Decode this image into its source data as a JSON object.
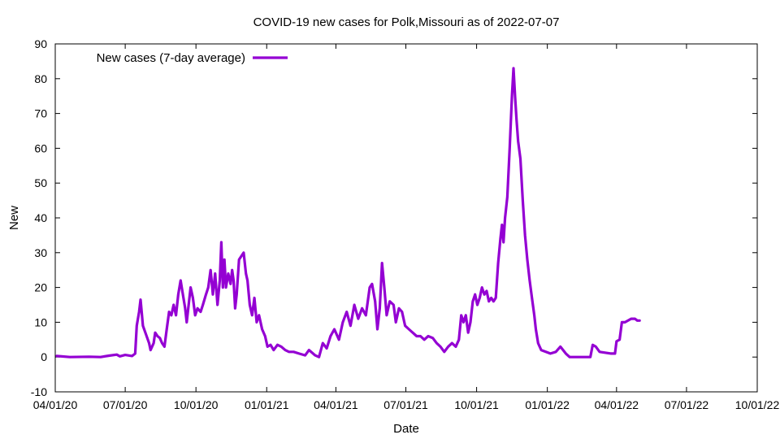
{
  "chart_data": {
    "type": "line",
    "title": "COVID-19 new cases for Polk,Missouri as of 2022-07-07",
    "xlabel": "Date",
    "ylabel": "New",
    "xlim": [
      "2020-04-01",
      "2022-10-01"
    ],
    "ylim": [
      -10,
      90
    ],
    "x_ticks": [
      "04/01/20",
      "07/01/20",
      "10/01/20",
      "01/01/21",
      "04/01/21",
      "07/01/21",
      "10/01/21",
      "01/01/22",
      "04/01/22",
      "07/01/22",
      "10/01/22"
    ],
    "x_tick_dates": [
      "2020-04-01",
      "2020-07-01",
      "2020-10-01",
      "2021-01-01",
      "2021-04-01",
      "2021-07-01",
      "2021-10-01",
      "2022-01-01",
      "2022-04-01",
      "2022-07-01",
      "2022-10-01"
    ],
    "y_ticks": [
      -10,
      0,
      10,
      20,
      30,
      40,
      50,
      60,
      70,
      80,
      90
    ],
    "grid": false,
    "legend_position": "top-left",
    "series": [
      {
        "name": "New cases (7-day average)",
        "color": "#9400d3",
        "points": [
          [
            "2020-04-03",
            0.3
          ],
          [
            "2020-04-20",
            0
          ],
          [
            "2020-05-15",
            0.1
          ],
          [
            "2020-05-30",
            0
          ],
          [
            "2020-06-10",
            0.4
          ],
          [
            "2020-06-20",
            0.7
          ],
          [
            "2020-06-24",
            0.2
          ],
          [
            "2020-07-01",
            0.6
          ],
          [
            "2020-07-10",
            0.3
          ],
          [
            "2020-07-14",
            1.0
          ],
          [
            "2020-07-16",
            9
          ],
          [
            "2020-07-19",
            13
          ],
          [
            "2020-07-21",
            16.5
          ],
          [
            "2020-07-24",
            9
          ],
          [
            "2020-07-28",
            6.5
          ],
          [
            "2020-08-01",
            4
          ],
          [
            "2020-08-03",
            2
          ],
          [
            "2020-08-07",
            4
          ],
          [
            "2020-08-09",
            7
          ],
          [
            "2020-08-12",
            6
          ],
          [
            "2020-08-15",
            5.5
          ],
          [
            "2020-08-18",
            4
          ],
          [
            "2020-08-21",
            3
          ],
          [
            "2020-08-24",
            8
          ],
          [
            "2020-08-27",
            13
          ],
          [
            "2020-08-30",
            12
          ],
          [
            "2020-09-02",
            15
          ],
          [
            "2020-09-05",
            12
          ],
          [
            "2020-09-08",
            18
          ],
          [
            "2020-09-11",
            22
          ],
          [
            "2020-09-14",
            18
          ],
          [
            "2020-09-17",
            14
          ],
          [
            "2020-09-19",
            10
          ],
          [
            "2020-09-21",
            14
          ],
          [
            "2020-09-24",
            20
          ],
          [
            "2020-09-27",
            17
          ],
          [
            "2020-09-30",
            12
          ],
          [
            "2020-10-03",
            14
          ],
          [
            "2020-10-07",
            13
          ],
          [
            "2020-10-10",
            15
          ],
          [
            "2020-10-14",
            18
          ],
          [
            "2020-10-17",
            20
          ],
          [
            "2020-10-20",
            25
          ],
          [
            "2020-10-23",
            18
          ],
          [
            "2020-10-26",
            24
          ],
          [
            "2020-10-29",
            15
          ],
          [
            "2020-11-01",
            22
          ],
          [
            "2020-11-03",
            33
          ],
          [
            "2020-11-05",
            20
          ],
          [
            "2020-11-07",
            28
          ],
          [
            "2020-11-09",
            20
          ],
          [
            "2020-11-12",
            24
          ],
          [
            "2020-11-15",
            21
          ],
          [
            "2020-11-17",
            25
          ],
          [
            "2020-11-19",
            22
          ],
          [
            "2020-11-21",
            14
          ],
          [
            "2020-11-23",
            18
          ],
          [
            "2020-11-26",
            28
          ],
          [
            "2020-11-29",
            29
          ],
          [
            "2020-12-02",
            30
          ],
          [
            "2020-12-05",
            24
          ],
          [
            "2020-12-07",
            22
          ],
          [
            "2020-12-10",
            15
          ],
          [
            "2020-12-13",
            12
          ],
          [
            "2020-12-16",
            17
          ],
          [
            "2020-12-19",
            10
          ],
          [
            "2020-12-22",
            12
          ],
          [
            "2020-12-26",
            8
          ],
          [
            "2020-12-30",
            6
          ],
          [
            "2021-01-02",
            3
          ],
          [
            "2021-01-06",
            3.5
          ],
          [
            "2021-01-10",
            2
          ],
          [
            "2021-01-15",
            3.5
          ],
          [
            "2021-01-20",
            3
          ],
          [
            "2021-01-25",
            2
          ],
          [
            "2021-01-30",
            1.5
          ],
          [
            "2021-02-05",
            1.5
          ],
          [
            "2021-02-12",
            1
          ],
          [
            "2021-02-20",
            0.5
          ],
          [
            "2021-02-25",
            2
          ],
          [
            "2021-03-05",
            0.5
          ],
          [
            "2021-03-10",
            0
          ],
          [
            "2021-03-15",
            4
          ],
          [
            "2021-03-20",
            2.5
          ],
          [
            "2021-03-25",
            6
          ],
          [
            "2021-03-30",
            8
          ],
          [
            "2021-04-05",
            5
          ],
          [
            "2021-04-10",
            10
          ],
          [
            "2021-04-15",
            13
          ],
          [
            "2021-04-20",
            9
          ],
          [
            "2021-04-25",
            15
          ],
          [
            "2021-04-30",
            11
          ],
          [
            "2021-05-05",
            14
          ],
          [
            "2021-05-10",
            12
          ],
          [
            "2021-05-15",
            20
          ],
          [
            "2021-05-18",
            21
          ],
          [
            "2021-05-22",
            16
          ],
          [
            "2021-05-25",
            8
          ],
          [
            "2021-05-28",
            14
          ],
          [
            "2021-05-31",
            27
          ],
          [
            "2021-06-03",
            20
          ],
          [
            "2021-06-06",
            12
          ],
          [
            "2021-06-10",
            16
          ],
          [
            "2021-06-15",
            15
          ],
          [
            "2021-06-18",
            10
          ],
          [
            "2021-06-22",
            14
          ],
          [
            "2021-06-26",
            13
          ],
          [
            "2021-06-30",
            9
          ],
          [
            "2021-07-05",
            8
          ],
          [
            "2021-07-10",
            7
          ],
          [
            "2021-07-15",
            6
          ],
          [
            "2021-07-20",
            6
          ],
          [
            "2021-07-25",
            5
          ],
          [
            "2021-07-30",
            6
          ],
          [
            "2021-08-05",
            5.5
          ],
          [
            "2021-08-10",
            4
          ],
          [
            "2021-08-15",
            3
          ],
          [
            "2021-08-20",
            1.5
          ],
          [
            "2021-08-25",
            3
          ],
          [
            "2021-08-30",
            4
          ],
          [
            "2021-09-04",
            3
          ],
          [
            "2021-09-08",
            5
          ],
          [
            "2021-09-11",
            12
          ],
          [
            "2021-09-14",
            10
          ],
          [
            "2021-09-17",
            12
          ],
          [
            "2021-09-20",
            7
          ],
          [
            "2021-09-23",
            10
          ],
          [
            "2021-09-26",
            16
          ],
          [
            "2021-09-29",
            18
          ],
          [
            "2021-10-02",
            15
          ],
          [
            "2021-10-05",
            17
          ],
          [
            "2021-10-08",
            20
          ],
          [
            "2021-10-11",
            18
          ],
          [
            "2021-10-14",
            19
          ],
          [
            "2021-10-17",
            16
          ],
          [
            "2021-10-20",
            17
          ],
          [
            "2021-10-23",
            16
          ],
          [
            "2021-10-26",
            17
          ],
          [
            "2021-10-29",
            27
          ],
          [
            "2021-11-01",
            34
          ],
          [
            "2021-11-03",
            38
          ],
          [
            "2021-11-05",
            33
          ],
          [
            "2021-11-07",
            40
          ],
          [
            "2021-11-10",
            46
          ],
          [
            "2021-11-13",
            60
          ],
          [
            "2021-11-16",
            75
          ],
          [
            "2021-11-18",
            83
          ],
          [
            "2021-11-20",
            75
          ],
          [
            "2021-11-22",
            68
          ],
          [
            "2021-11-24",
            62
          ],
          [
            "2021-11-27",
            57
          ],
          [
            "2021-11-30",
            45
          ],
          [
            "2021-12-03",
            35
          ],
          [
            "2021-12-06",
            28
          ],
          [
            "2021-12-09",
            22
          ],
          [
            "2021-12-12",
            17
          ],
          [
            "2021-12-15",
            12
          ],
          [
            "2021-12-17",
            8
          ],
          [
            "2021-12-20",
            4
          ],
          [
            "2021-12-24",
            2
          ],
          [
            "2021-12-30",
            1.5
          ],
          [
            "2022-01-05",
            1
          ],
          [
            "2022-01-12",
            1.5
          ],
          [
            "2022-01-18",
            3
          ],
          [
            "2022-01-25",
            1
          ],
          [
            "2022-01-30",
            0
          ],
          [
            "2022-02-20",
            0
          ],
          [
            "2022-02-26",
            0
          ],
          [
            "2022-03-01",
            3.5
          ],
          [
            "2022-03-05",
            3
          ],
          [
            "2022-03-10",
            1.5
          ],
          [
            "2022-03-25",
            1
          ],
          [
            "2022-03-30",
            1
          ],
          [
            "2022-04-01",
            4.5
          ],
          [
            "2022-04-05",
            5
          ],
          [
            "2022-04-08",
            10
          ],
          [
            "2022-04-12",
            10
          ],
          [
            "2022-04-20",
            11
          ],
          [
            "2022-04-25",
            11
          ],
          [
            "2022-04-28",
            10.5
          ],
          [
            "2022-05-01",
            10.5
          ]
        ]
      }
    ]
  }
}
